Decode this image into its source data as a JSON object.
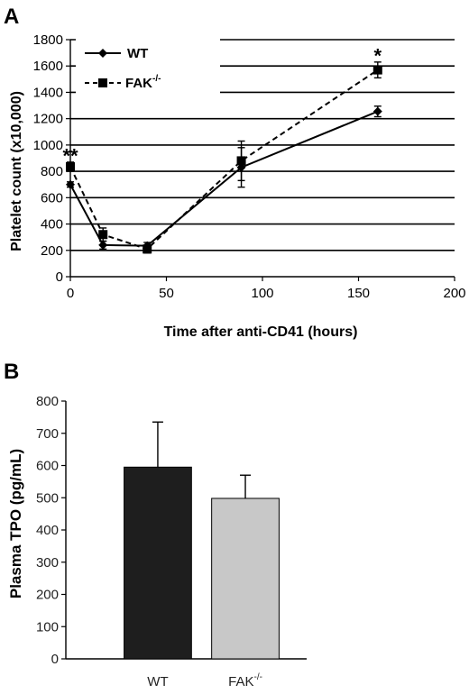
{
  "chart_data": [
    {
      "panel_label": "A",
      "type": "line",
      "xlabel": "Time after anti-CD41 (hours)",
      "ylabel": "Platelet count (x10,000)",
      "xlim": [
        0,
        200
      ],
      "ylim": [
        0,
        1800
      ],
      "xticks": [
        "0",
        "50",
        "100",
        "150",
        "200"
      ],
      "yticks": [
        "0",
        "200",
        "400",
        "600",
        "800",
        "1000",
        "1200",
        "1400",
        "1600",
        "1800"
      ],
      "grid": "horizontal",
      "legend_position": "top-left",
      "series": [
        {
          "name": "WT",
          "line_style": "solid",
          "marker": "diamond",
          "color": "#000000",
          "points": [
            {
              "x": 0,
              "y": 700,
              "err": 20
            },
            {
              "x": 17,
              "y": 240,
              "err": 30
            },
            {
              "x": 40,
              "y": 235,
              "err": 25
            },
            {
              "x": 89,
              "y": 830,
              "err": 150
            },
            {
              "x": 160,
              "y": 1255,
              "err": 40
            }
          ]
        },
        {
          "name_prefix": "FAK",
          "name_superscript": "-/-",
          "line_style": "dashed",
          "marker": "square",
          "color": "#000000",
          "points": [
            {
              "x": 0,
              "y": 835,
              "err": 35
            },
            {
              "x": 17,
              "y": 320,
              "err": 50
            },
            {
              "x": 40,
              "y": 210,
              "err": 30
            },
            {
              "x": 89,
              "y": 880,
              "err": 150
            },
            {
              "x": 160,
              "y": 1570,
              "err": 60
            }
          ]
        }
      ],
      "annotations": [
        {
          "text": "**",
          "x": 0,
          "y": 880
        },
        {
          "text": "*",
          "x": 160,
          "y": 1640
        }
      ]
    },
    {
      "panel_label": "B",
      "type": "bar",
      "xlabel": "",
      "ylabel": "Plasma TPO (pg/mL)",
      "ylim": [
        0,
        800
      ],
      "yticks": [
        "0",
        "100",
        "200",
        "300",
        "400",
        "500",
        "600",
        "700",
        "800"
      ],
      "grid": "none",
      "categories": [
        {
          "prefix": "WT",
          "sup": ""
        },
        {
          "prefix": "FAK",
          "sup": "-/-"
        }
      ],
      "values": [
        595,
        498
      ],
      "errors": [
        140,
        72
      ],
      "colors": [
        "#1e1e1e",
        "#c8c8c8"
      ]
    }
  ]
}
